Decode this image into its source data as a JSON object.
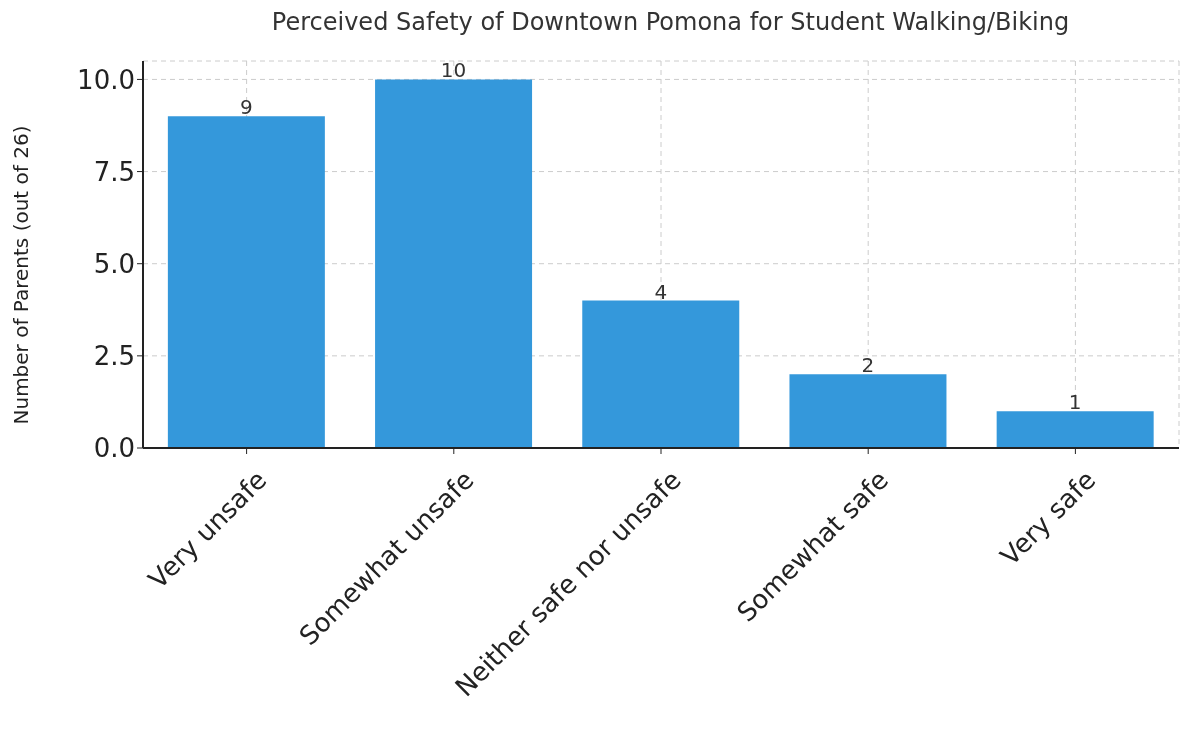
{
  "chart_data": {
    "type": "bar",
    "title": "Perceived Safety of Downtown Pomona for Student Walking/Biking",
    "ylabel": "Number of Parents (out of 26)",
    "categories": [
      "Very unsafe",
      "Somewhat unsafe",
      "Neither safe nor unsafe",
      "Somewhat safe",
      "Very safe"
    ],
    "values": [
      9,
      10,
      4,
      2,
      1
    ],
    "color": "#3498db",
    "ylim": [
      0,
      10.5
    ],
    "yticks": [
      {
        "value": 0,
        "label": "0.0"
      },
      2.5,
      {
        "value": 5,
        "label": "5.0"
      },
      7.5,
      {
        "value": 10,
        "label": "10.0"
      }
    ],
    "grid": true,
    "data_labels": true
  }
}
